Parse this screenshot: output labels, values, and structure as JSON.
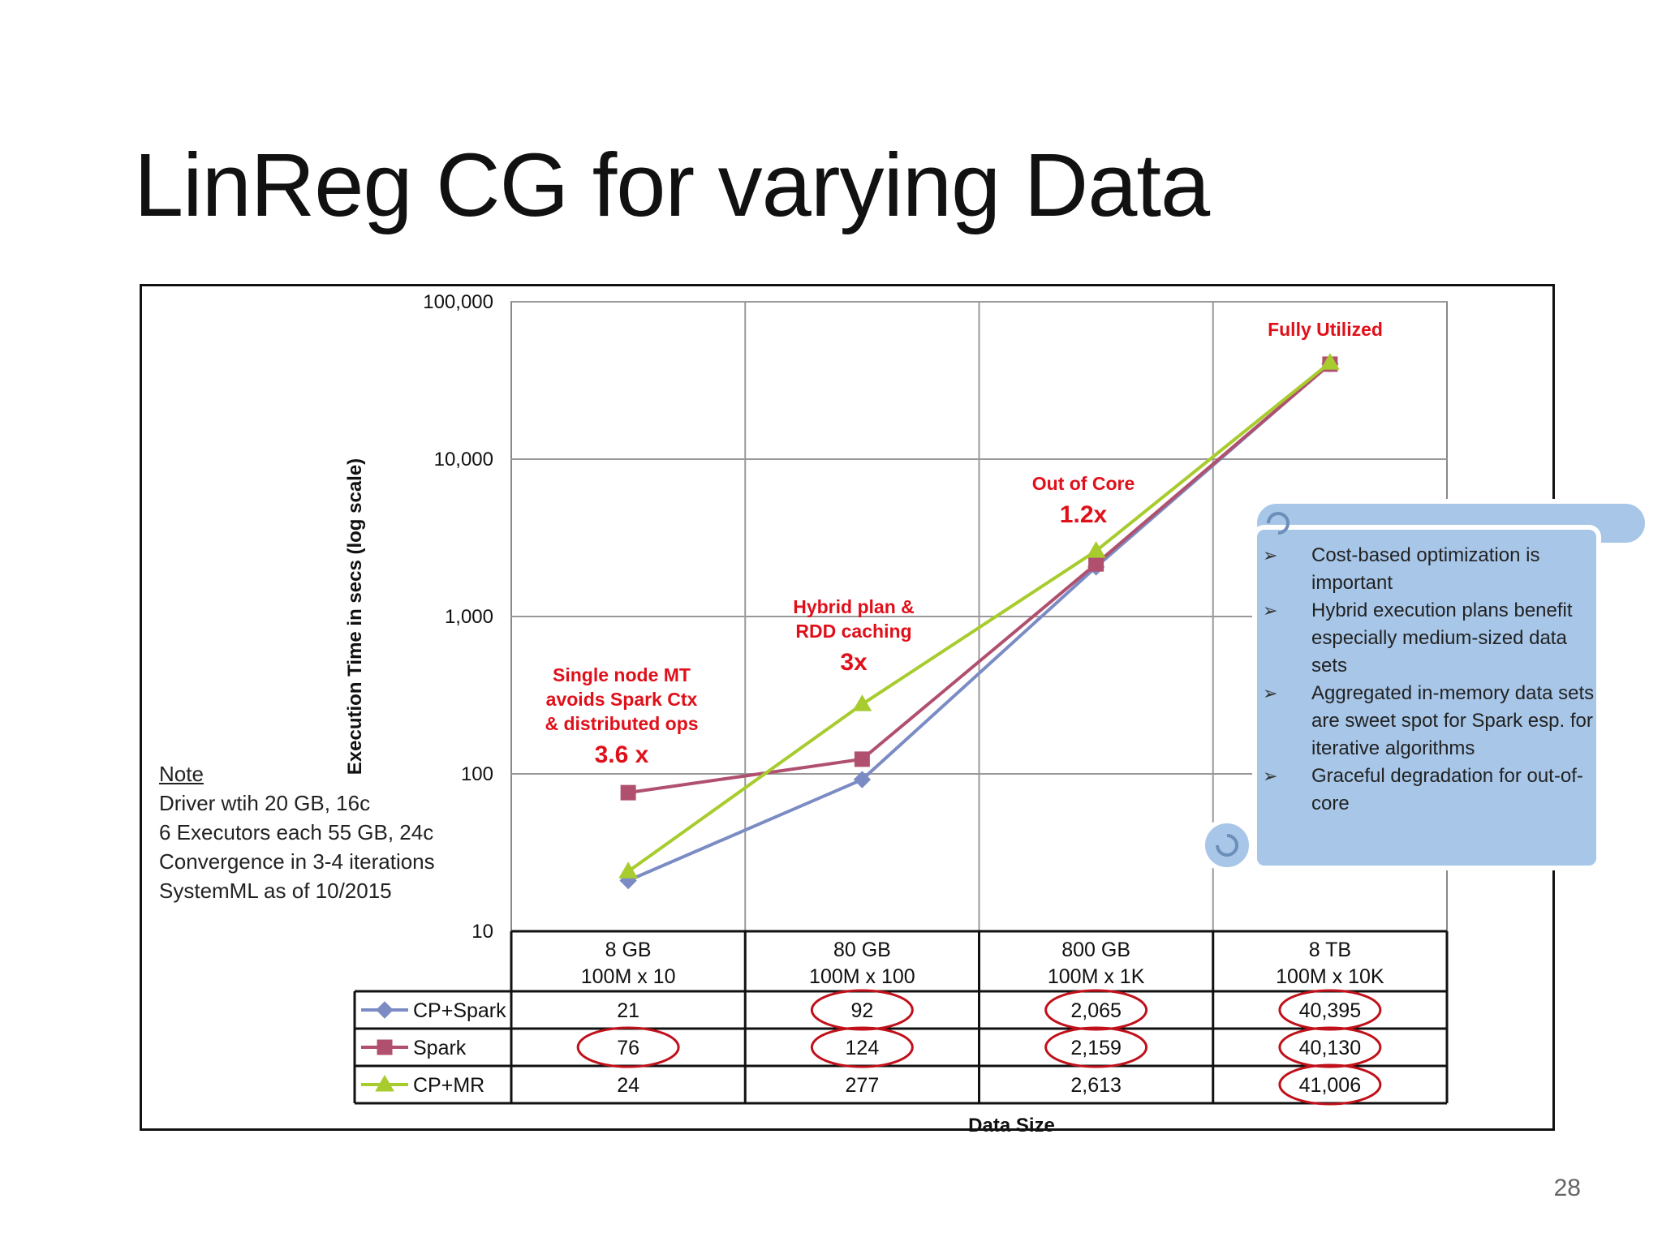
{
  "slide": {
    "title": "LinReg CG for varying Data",
    "page_number": "28"
  },
  "note": {
    "title": "Note",
    "lines": [
      "Driver wtih 20 GB, 16c",
      "6 Executors each 55 GB, 24c",
      "Convergence in 3-4 iterations",
      "SystemML as of 10/2015"
    ]
  },
  "callout": {
    "bullets": [
      "Cost-based optimization  is important",
      "Hybrid execution  plans benefit especially medium-sized data sets",
      "Aggregated in-memory data sets are sweet spot for Spark esp. for iterative algorithms",
      "Graceful  degradation for out-of-core"
    ],
    "fill_color": "#a7c6e8"
  },
  "chart_data": {
    "type": "line",
    "xlabel": "Data Size",
    "ylabel": "Execution Time in secs  (log scale)",
    "ylog": true,
    "ylim": [
      10,
      100000
    ],
    "yticks": [
      10,
      100,
      1000,
      10000,
      100000
    ],
    "ytick_labels": [
      "10",
      "100",
      "1,000",
      "10,000",
      "100,000"
    ],
    "categories": [
      "8 GB",
      "80 GB",
      "800 GB",
      "8 TB"
    ],
    "category_sublabels": [
      "100M x 10",
      "100M x 100",
      "100M x 1K",
      "100M x 10K"
    ],
    "series": [
      {
        "name": "CP+Spark",
        "values": [
          21,
          92,
          2065,
          40395
        ],
        "labels": [
          "21",
          "92",
          "2,065",
          "40,395"
        ],
        "color": "#7b8cc4",
        "marker": "diamond"
      },
      {
        "name": "Spark",
        "values": [
          76,
          124,
          2159,
          40130
        ],
        "labels": [
          "76",
          "124",
          "2,159",
          "40,130"
        ],
        "color": "#b0506e",
        "marker": "square"
      },
      {
        "name": "CP+MR",
        "values": [
          24,
          277,
          2613,
          41006
        ],
        "labels": [
          "24",
          "277",
          "2,613",
          "41,006"
        ],
        "color": "#a8cc2e",
        "marker": "triangle"
      }
    ],
    "annotations": [
      {
        "lines": [
          "Single node MT",
          "avoids Spark Ctx",
          "& distributed ops"
        ],
        "highlight": "3.6 x",
        "category": 0
      },
      {
        "lines": [
          "Hybrid plan &",
          "RDD caching"
        ],
        "highlight": "3x",
        "category": 1
      },
      {
        "lines": [
          "Out of Core"
        ],
        "highlight": "1.2x",
        "category": 2
      },
      {
        "lines": [
          "Fully Utilized"
        ],
        "highlight": "",
        "category": 3
      }
    ],
    "annotation_color": "#e0101a",
    "circle_color": "#c0101a",
    "circled_cells": [
      {
        "series": 0,
        "category": 1
      },
      {
        "series": 0,
        "category": 2
      },
      {
        "series": 0,
        "category": 3
      },
      {
        "series": 1,
        "category": 0
      },
      {
        "series": 1,
        "category": 1
      },
      {
        "series": 1,
        "category": 2
      },
      {
        "series": 1,
        "category": 3
      },
      {
        "series": 2,
        "category": 3
      }
    ],
    "grid": true
  }
}
